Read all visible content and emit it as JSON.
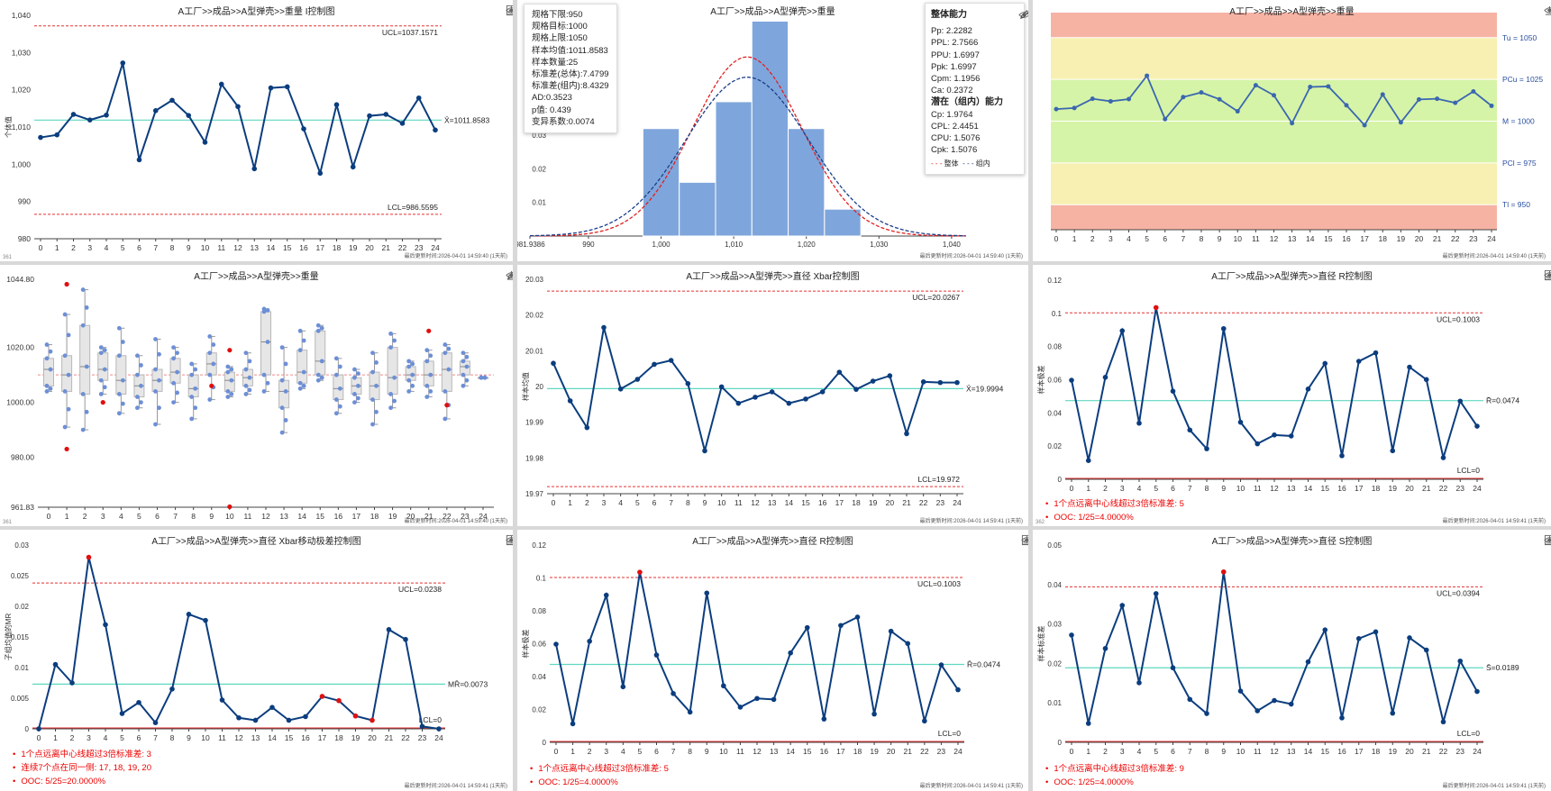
{
  "common": {
    "update_prefix": "最后更新时间:",
    "update_a": "2026-04-01 14:59:40 (1天前)",
    "update_b": "2026-04-01 14:59:41 (1天前)",
    "colors": {
      "line": "#0b3d7e",
      "center": "#5fd8c0",
      "limit": "#e53030",
      "ooc": "#e01010"
    }
  },
  "p1": {
    "id": "361",
    "title": "A工厂>>成品>>A型弹壳>>重量 I控制图",
    "ylabel": "个体值",
    "ucl_label": "UCL=1037.1571",
    "cl_label": "X̄=1011.8583",
    "lcl_label": "LCL=986.5595",
    "chart_data": {
      "type": "line",
      "ylim": [
        980,
        1040
      ],
      "yticks": [
        "980",
        "990",
        "1,000",
        "1,010",
        "1,020",
        "1,030",
        "1,040"
      ],
      "x": [
        0,
        1,
        2,
        3,
        4,
        5,
        6,
        7,
        8,
        9,
        10,
        11,
        12,
        13,
        14,
        15,
        16,
        17,
        18,
        19,
        20,
        21,
        22,
        23,
        24
      ],
      "values": [
        1007.2,
        1007.9,
        1013.4,
        1011.9,
        1013.2,
        1027.2,
        1001.2,
        1014.4,
        1017.2,
        1013.1,
        1005.9,
        1021.5,
        1015.5,
        998.8,
        1020.5,
        1020.8,
        1009.5,
        997.6,
        1016.0,
        999.3,
        1013.0,
        1013.4,
        1011.0,
        1017.8,
        1009.2
      ],
      "ucl": 1037.1571,
      "cl": 1011.8583,
      "lcl": 986.5595
    }
  },
  "p2": {
    "title": "A工厂>>成品>>A型弹壳>>重量",
    "stats": [
      "规格下限:950",
      "规格目标:1000",
      "规格上限:1050",
      "样本均值:1011.8583",
      "样本数量:25",
      "标准差(总体):7.4799",
      "标准差(组内):8.4329",
      "AD:0.3523",
      "p值: 0.439",
      "变异系数:0.0074"
    ],
    "cap_title": "整体能力",
    "cap": [
      "Pp:  2.2282",
      "PPL:  2.7566",
      "PPU:  1.6997",
      "Ppk:  1.6997",
      "Cpm:  1.1956",
      "Ca:  0.2372"
    ],
    "pot_title": "潜在（组内）能力",
    "pot": [
      "Cp:  1.9764",
      "CPL:  2.4451",
      "CPU:  1.5076",
      "Cpk:  1.5076"
    ],
    "legend_overall": "整体",
    "legend_within": "组内",
    "chart_data": {
      "type": "bar",
      "xlim": [
        981.9386,
        1042
      ],
      "xticks": [
        "981.9386",
        "990",
        "1,000",
        "1,010",
        "1,020",
        "1,030",
        "1,040"
      ],
      "yticks": [
        "0.01",
        "0.02",
        "0.03"
      ],
      "bins": [
        [
          997.5,
          1002.5,
          0.032
        ],
        [
          1002.5,
          1007.5,
          0.016
        ],
        [
          1007.5,
          1012.5,
          0.04
        ],
        [
          1012.5,
          1017.5,
          0.064
        ],
        [
          1017.5,
          1022.5,
          0.032
        ],
        [
          1022.5,
          1027.5,
          0.008
        ]
      ],
      "mean": 1011.8583,
      "sd_overall": 7.4799,
      "sd_within": 8.4329
    }
  },
  "p3": {
    "title": "A工厂>>成品>>A型弹壳>>重量",
    "zones": [
      "Tu = 1050",
      "PCu = 1025",
      "M = 1000",
      "PCl = 975",
      "Tl = 950"
    ],
    "chart_data": {
      "type": "line",
      "ylim": [
        935,
        1065
      ],
      "x": [
        0,
        1,
        2,
        3,
        4,
        5,
        6,
        7,
        8,
        9,
        10,
        11,
        12,
        13,
        14,
        15,
        16,
        17,
        18,
        19,
        20,
        21,
        22,
        23,
        24
      ],
      "values": [
        1007.2,
        1007.9,
        1013.4,
        1011.9,
        1013.2,
        1027.2,
        1001.2,
        1014.4,
        1017.2,
        1013.1,
        1005.9,
        1021.5,
        1015.5,
        998.8,
        1020.5,
        1020.8,
        1009.5,
        997.6,
        1016.0,
        999.3,
        1013.0,
        1013.4,
        1011.0,
        1017.8,
        1009.2
      ]
    }
  },
  "p4": {
    "id": "361",
    "title": "A工厂>>成品>>A型弹壳>>重量",
    "chart_data": {
      "type": "box",
      "ylim": [
        961.83,
        1044.8
      ],
      "yticks": [
        "961.83",
        "980.00",
        "1000.00",
        "1020.00",
        "1044.80"
      ],
      "ref": 1010,
      "x": [
        0,
        1,
        2,
        3,
        4,
        5,
        6,
        7,
        8,
        9,
        10,
        11,
        12,
        13,
        14,
        15,
        16,
        17,
        18,
        19,
        20,
        21,
        22,
        23,
        24
      ],
      "boxes": [
        [
          1004,
          1006,
          1012,
          1016,
          1021
        ],
        [
          991,
          1004,
          1010,
          1017,
          1032
        ],
        [
          990,
          1003,
          1013,
          1028,
          1041
        ],
        [
          1003,
          1008,
          1012,
          1018,
          1020
        ],
        [
          996,
          1003,
          1008,
          1017,
          1027
        ],
        [
          998,
          1002,
          1006,
          1010,
          1017
        ],
        [
          992,
          1004,
          1008,
          1012,
          1023
        ],
        [
          1000,
          1007,
          1011,
          1016,
          1020
        ],
        [
          994,
          1002,
          1005,
          1010,
          1014
        ],
        [
          1001,
          1010,
          1014,
          1018,
          1024
        ],
        [
          1002,
          1004,
          1008,
          1011,
          1013
        ],
        [
          1003,
          1006,
          1009,
          1012,
          1018
        ],
        [
          1004,
          1010,
          1022,
          1033,
          1034
        ],
        [
          989,
          998,
          1004,
          1008,
          1020
        ],
        [
          1005,
          1007,
          1011,
          1019,
          1026
        ],
        [
          1008,
          1010,
          1015,
          1026,
          1028
        ],
        [
          996,
          1001,
          1005,
          1010,
          1016
        ],
        [
          1000,
          1003,
          1006,
          1009,
          1012
        ],
        [
          992,
          1001,
          1006,
          1011,
          1018
        ],
        [
          998,
          1003,
          1009,
          1020,
          1025
        ],
        [
          1004,
          1008,
          1010,
          1013,
          1015
        ],
        [
          1002,
          1006,
          1010,
          1015,
          1019
        ],
        [
          994,
          1004,
          1012,
          1018,
          1021
        ],
        [
          1006,
          1010,
          1013,
          1015,
          1018
        ],
        [
          1009,
          1009,
          1009,
          1009,
          1009
        ]
      ],
      "ooc_points": [
        [
          1,
          1043
        ],
        [
          1,
          983
        ],
        [
          3,
          1000
        ],
        [
          9,
          1006
        ],
        [
          10,
          1019
        ],
        [
          10,
          962
        ],
        [
          21,
          1026
        ],
        [
          22,
          999
        ]
      ]
    }
  },
  "p5": {
    "title": "A工厂>>成品>>A型弹壳>>直径 Xbar控制图",
    "ylabel": "样本均值",
    "ucl_label": "UCL=20.0267",
    "cl_label": "X̄=19.9994",
    "lcl_label": "LCL=19.972",
    "chart_data": {
      "type": "line",
      "ylim": [
        19.97,
        20.03
      ],
      "yticks": [
        "19.97",
        "19.98",
        "19.99",
        "20",
        "20.01",
        "20.02",
        "20.03"
      ],
      "x": [
        0,
        1,
        2,
        3,
        4,
        5,
        6,
        7,
        8,
        9,
        10,
        11,
        12,
        13,
        14,
        15,
        16,
        17,
        18,
        19,
        20,
        21,
        22,
        23,
        24
      ],
      "values": [
        20.0065,
        19.996,
        19.9885,
        20.0165,
        19.9993,
        20.002,
        20.0062,
        20.0073,
        20.0008,
        19.982,
        19.9999,
        19.9953,
        19.997,
        19.9985,
        19.9953,
        19.9965,
        19.9985,
        20.004,
        19.9992,
        20.0015,
        20.003,
        19.9868,
        20.0013,
        20.0011,
        20.0011
      ],
      "ucl": 20.0267,
      "cl": 19.9994,
      "lcl": 19.972
    }
  },
  "p6": {
    "id": "362",
    "title": "A工厂>>成品>>A型弹壳>>直径 R控制图",
    "ylabel": "样本极差",
    "ucl_label": "UCL=0.1003",
    "cl_label": "R̄=0.0474",
    "lcl_label": "LCL=0",
    "notes": [
      "1个点远离中心线超过3倍标准差: 5",
      "OOC: 1/25=4.0000%"
    ],
    "chart_data": {
      "type": "line",
      "ylim": [
        0,
        0.12
      ],
      "yticks": [
        "0",
        "0.02",
        "0.04",
        "0.06",
        "0.08",
        "0.1",
        "0.12"
      ],
      "x": [
        0,
        1,
        2,
        3,
        4,
        5,
        6,
        7,
        8,
        9,
        10,
        11,
        12,
        13,
        14,
        15,
        16,
        17,
        18,
        19,
        20,
        21,
        22,
        23,
        24
      ],
      "values": [
        0.0597,
        0.0113,
        0.0615,
        0.0895,
        0.0338,
        0.1035,
        0.0531,
        0.0297,
        0.0184,
        0.0908,
        0.0344,
        0.0214,
        0.0267,
        0.0261,
        0.0544,
        0.0698,
        0.0142,
        0.0711,
        0.0762,
        0.0172,
        0.0676,
        0.0601,
        0.013,
        0.0471,
        0.032
      ],
      "ucl": 0.1003,
      "cl": 0.0474,
      "lcl": 0,
      "ooc": [
        5
      ]
    }
  },
  "p7": {
    "title": "A工厂>>成品>>A型弹壳>>直径 Xbar移动极差控制图",
    "ylabel": "子组均值的MR",
    "ucl_label": "UCL=0.0238",
    "cl_label": "MR̄=0.0073",
    "lcl_label": "LCL=0",
    "notes": [
      "1个点远离中心线超过3倍标准差: 3",
      "连续7个点在同一侧: 17, 18, 19, 20",
      "OOC: 5/25=20.0000%"
    ],
    "chart_data": {
      "type": "line",
      "ylim": [
        0,
        0.03
      ],
      "yticks": [
        "0",
        "0.005",
        "0.01",
        "0.015",
        "0.02",
        "0.025",
        "0.03"
      ],
      "x": [
        0,
        1,
        2,
        3,
        4,
        5,
        6,
        7,
        8,
        9,
        10,
        11,
        12,
        13,
        14,
        15,
        16,
        17,
        18,
        19,
        20,
        21,
        22,
        23,
        24
      ],
      "values": [
        0,
        0.0105,
        0.0075,
        0.028,
        0.017,
        0.0025,
        0.0043,
        0.001,
        0.0065,
        0.0187,
        0.0177,
        0.0047,
        0.0018,
        0.0014,
        0.0035,
        0.0014,
        0.002,
        0.0053,
        0.0046,
        0.0021,
        0.0014,
        0.0162,
        0.0146,
        0.0004,
        0
      ],
      "ucl": 0.0238,
      "cl": 0.0073,
      "lcl": 0,
      "ooc": [
        3,
        17,
        18,
        19,
        20
      ]
    }
  },
  "p8": {
    "title": "A工厂>>成品>>A型弹壳>>直径 R控制图",
    "ylabel": "样本极差",
    "ucl_label": "UCL=0.1003",
    "cl_label": "R̄=0.0474",
    "lcl_label": "LCL=0",
    "notes": [
      "1个点远离中心线超过3倍标准差: 5",
      "OOC: 1/25=4.0000%"
    ],
    "chart_data": {
      "type": "line",
      "ylim": [
        0,
        0.12
      ],
      "yticks": [
        "0",
        "0.02",
        "0.04",
        "0.06",
        "0.08",
        "0.1",
        "0.12"
      ],
      "x": [
        0,
        1,
        2,
        3,
        4,
        5,
        6,
        7,
        8,
        9,
        10,
        11,
        12,
        13,
        14,
        15,
        16,
        17,
        18,
        19,
        20,
        21,
        22,
        23,
        24
      ],
      "values": [
        0.0597,
        0.0113,
        0.0615,
        0.0895,
        0.0338,
        0.1035,
        0.0531,
        0.0297,
        0.0184,
        0.0908,
        0.0344,
        0.0214,
        0.0267,
        0.0261,
        0.0544,
        0.0698,
        0.0142,
        0.0711,
        0.0762,
        0.0172,
        0.0676,
        0.0601,
        0.013,
        0.0471,
        0.032
      ],
      "ucl": 0.1003,
      "cl": 0.0474,
      "lcl": 0,
      "ooc": [
        5
      ]
    }
  },
  "p9": {
    "title": "A工厂>>成品>>A型弹壳>>直径 S控制图",
    "ylabel": "样本标准差",
    "ucl_label": "UCL=0.0394",
    "cl_label": "S̄=0.0189",
    "lcl_label": "LCL=0",
    "notes": [
      "1个点远离中心线超过3倍标准差: 9",
      "OOC: 1/25=4.0000%"
    ],
    "chart_data": {
      "type": "line",
      "ylim": [
        0,
        0.05
      ],
      "yticks": [
        "0",
        "0.01",
        "0.02",
        "0.03",
        "0.04",
        "0.05"
      ],
      "x": [
        0,
        1,
        2,
        3,
        4,
        5,
        6,
        7,
        8,
        9,
        10,
        11,
        12,
        13,
        14,
        15,
        16,
        17,
        18,
        19,
        20,
        21,
        22,
        23,
        24
      ],
      "values": [
        0.0272,
        0.0048,
        0.0238,
        0.0347,
        0.0151,
        0.0377,
        0.0189,
        0.0109,
        0.0073,
        0.0432,
        0.013,
        0.008,
        0.0106,
        0.0097,
        0.0204,
        0.0285,
        0.0062,
        0.0263,
        0.028,
        0.0074,
        0.0265,
        0.0234,
        0.0052,
        0.0206,
        0.0129
      ],
      "ucl": 0.0394,
      "cl": 0.0189,
      "lcl": 0,
      "ooc": [
        9
      ]
    }
  }
}
